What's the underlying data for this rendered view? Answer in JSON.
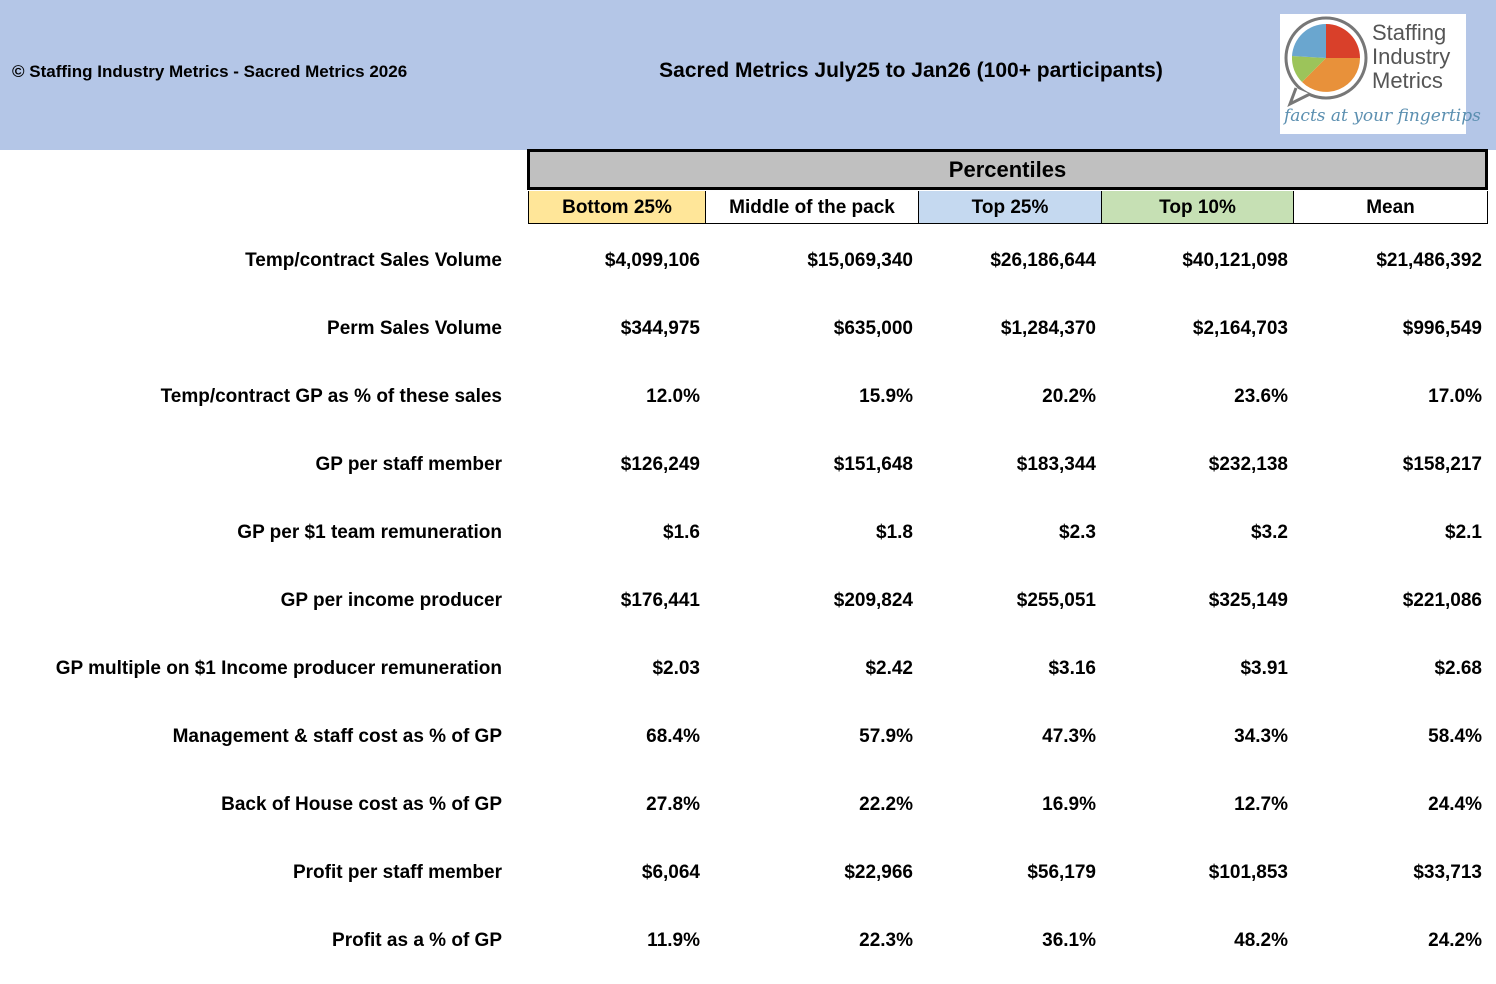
{
  "header": {
    "copyright": "© Staffing Industry Metrics - Sacred Metrics 2026",
    "title": "Sacred Metrics July25 to Jan26  (100+ participants)"
  },
  "logo": {
    "lines": [
      "Staffing",
      "Industry",
      "Metrics"
    ],
    "tagline": "facts at your fingertips"
  },
  "table": {
    "group_header": "Percentiles",
    "columns": [
      "Bottom 25%",
      "Middle of the pack",
      "Top 25%",
      "Top 10%",
      "Mean"
    ],
    "rows": [
      {
        "label": "Temp/contract Sales Volume",
        "cells": [
          "$4,099,106",
          "$15,069,340",
          "$26,186,644",
          "$40,121,098",
          "$21,486,392"
        ]
      },
      {
        "label": "Perm Sales Volume",
        "cells": [
          "$344,975",
          "$635,000",
          "$1,284,370",
          "$2,164,703",
          "$996,549"
        ]
      },
      {
        "label": "Temp/contract GP as % of these sales",
        "cells": [
          "12.0%",
          "15.9%",
          "20.2%",
          "23.6%",
          "17.0%"
        ]
      },
      {
        "label": "GP per staff member",
        "cells": [
          "$126,249",
          "$151,648",
          "$183,344",
          "$232,138",
          "$158,217"
        ]
      },
      {
        "label": "GP per $1 team remuneration",
        "cells": [
          "$1.6",
          "$1.8",
          "$2.3",
          "$3.2",
          "$2.1"
        ]
      },
      {
        "label": "GP per income producer",
        "cells": [
          "$176,441",
          "$209,824",
          "$255,051",
          "$325,149",
          "$221,086"
        ]
      },
      {
        "label": "GP multiple on $1 Income producer remuneration",
        "cells": [
          "$2.03",
          "$2.42",
          "$3.16",
          "$3.91",
          "$2.68"
        ]
      },
      {
        "label": "Management & staff cost as % of GP",
        "cells": [
          "68.4%",
          "57.9%",
          "47.3%",
          "34.3%",
          "58.4%"
        ]
      },
      {
        "label": "Back of House cost as % of GP",
        "cells": [
          "27.8%",
          "22.2%",
          "16.9%",
          "12.7%",
          "24.4%"
        ]
      },
      {
        "label": "Profit per staff member",
        "cells": [
          "$6,064",
          "$22,966",
          "$56,179",
          "$101,853",
          "$33,713"
        ]
      },
      {
        "label": "Profit as a % of GP",
        "cells": [
          "11.9%",
          "22.3%",
          "36.1%",
          "48.2%",
          "24.2%"
        ]
      }
    ]
  }
}
